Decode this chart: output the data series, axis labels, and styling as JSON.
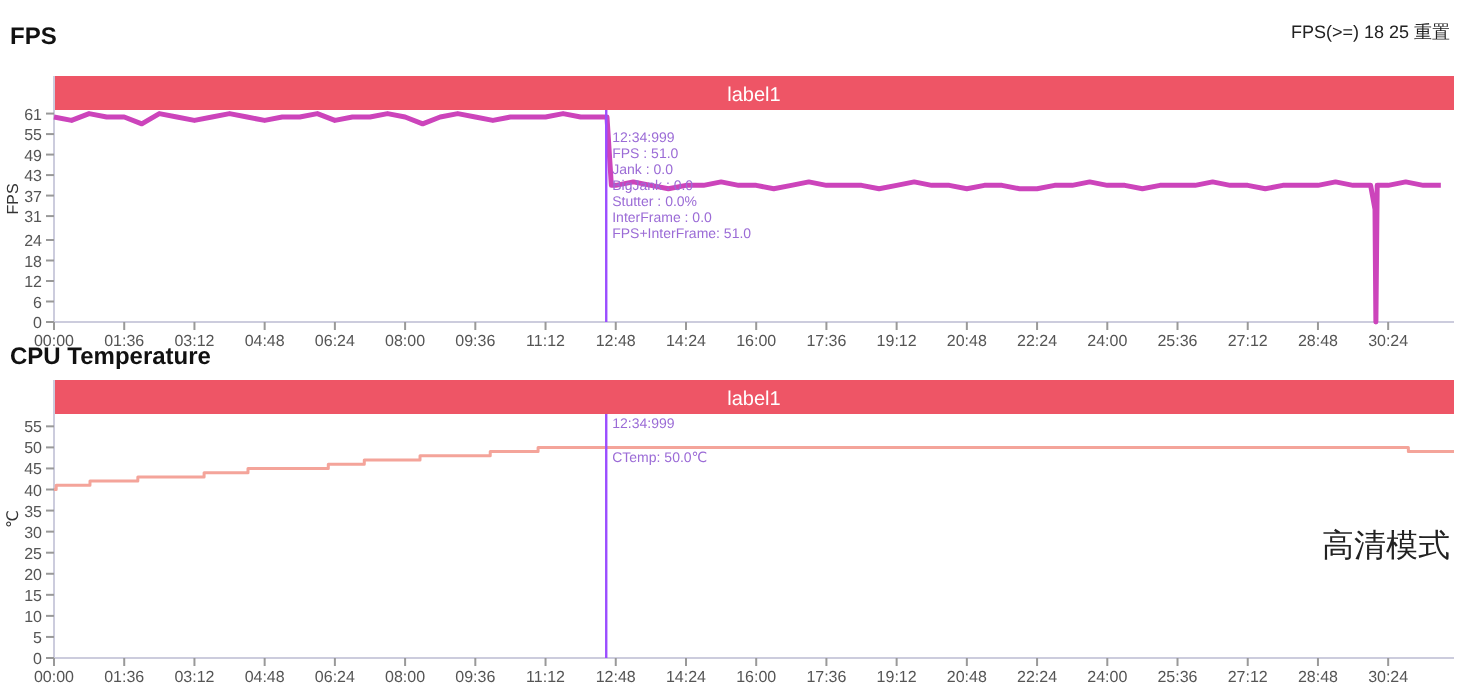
{
  "chart_data": [
    {
      "type": "line",
      "title": "FPS",
      "ylabel": "FPS",
      "xlim": [
        0,
        31.9
      ],
      "ylim": [
        0,
        72
      ],
      "xticks": [
        {
          "value": 0,
          "label": "00:00"
        },
        {
          "value": 1.6,
          "label": "01:36"
        },
        {
          "value": 3.2,
          "label": "03:12"
        },
        {
          "value": 4.8,
          "label": "04:48"
        },
        {
          "value": 6.4,
          "label": "06:24"
        },
        {
          "value": 8,
          "label": "08:00"
        },
        {
          "value": 9.6,
          "label": "09:36"
        },
        {
          "value": 11.2,
          "label": "11:12"
        },
        {
          "value": 12.8,
          "label": "12:48"
        },
        {
          "value": 14.4,
          "label": "14:24"
        },
        {
          "value": 16,
          "label": "16:00"
        },
        {
          "value": 17.6,
          "label": "17:36"
        },
        {
          "value": 19.2,
          "label": "19:12"
        },
        {
          "value": 20.8,
          "label": "20:48"
        },
        {
          "value": 22.4,
          "label": "22:24"
        },
        {
          "value": 24,
          "label": "24:00"
        },
        {
          "value": 25.6,
          "label": "25:36"
        },
        {
          "value": 27.2,
          "label": "27:12"
        },
        {
          "value": 28.8,
          "label": "28:48"
        },
        {
          "value": 30.4,
          "label": "30:24"
        }
      ],
      "yticks": [
        0,
        6,
        12,
        18,
        24,
        31,
        37,
        43,
        49,
        55,
        61
      ],
      "series": [
        {
          "color": "#cc44bb",
          "x": [
            0,
            0.4,
            0.8,
            1.2,
            1.6,
            2,
            2.4,
            2.8,
            3.2,
            3.6,
            4,
            4.4,
            4.8,
            5.2,
            5.6,
            6,
            6.4,
            6.8,
            7.2,
            7.6,
            8,
            8.4,
            8.8,
            9.2,
            9.6,
            10,
            10.4,
            10.8,
            11.2,
            11.6,
            12,
            12.4,
            12.6,
            12.7,
            12.8,
            13.2,
            13.6,
            14,
            14.4,
            14.8,
            15.2,
            15.6,
            16,
            16.4,
            16.8,
            17.2,
            17.6,
            18,
            18.4,
            18.8,
            19.2,
            19.6,
            20,
            20.4,
            20.8,
            21.2,
            21.6,
            22,
            22.4,
            22.8,
            23.2,
            23.6,
            24,
            24.4,
            24.8,
            25.2,
            25.6,
            26,
            26.4,
            26.8,
            27.2,
            27.6,
            28,
            28.4,
            28.8,
            29.2,
            29.6,
            30,
            30.1,
            30.12,
            30.15,
            30.4,
            30.8,
            31.2,
            31.6
          ],
          "values": [
            60,
            59,
            61,
            60,
            60,
            58,
            61,
            60,
            59,
            60,
            61,
            60,
            59,
            60,
            60,
            61,
            59,
            60,
            60,
            61,
            60,
            58,
            60,
            61,
            60,
            59,
            60,
            60,
            60,
            61,
            60,
            60,
            60,
            40,
            40,
            41,
            40,
            39,
            40,
            40,
            41,
            40,
            40,
            39,
            40,
            41,
            40,
            40,
            40,
            39,
            40,
            41,
            40,
            40,
            39,
            40,
            40,
            39,
            39,
            40,
            40,
            41,
            40,
            40,
            39,
            40,
            40,
            40,
            41,
            40,
            40,
            39,
            40,
            40,
            40,
            41,
            40,
            40,
            33,
            0,
            40,
            40,
            41,
            40,
            40
          ]
        }
      ],
      "bands": [
        {
          "axis": "x",
          "from": 0,
          "to": 31.9,
          "label": "label1",
          "color": "#ee5566"
        }
      ],
      "ref_lines": [
        {
          "axis": "x",
          "value": 12.583,
          "color": "#9b4dff"
        }
      ],
      "subtitle": "FPS(>=)   18   25   重置",
      "annotations": [
        "12:34:999",
        "FPS            : 51.0",
        "Jank           : 0.0",
        "BigJank        : 0.0",
        "Stutter        : 0.0%",
        "InterFrame     : 0.0",
        "FPS+InterFrame: 51.0"
      ]
    },
    {
      "type": "step",
      "title": "CPU Temperature",
      "ylabel": "℃",
      "xlim": [
        0,
        31.9
      ],
      "ylim": [
        0,
        66
      ],
      "xticks": [
        {
          "value": 0,
          "label": "00:00"
        },
        {
          "value": 1.6,
          "label": "01:36"
        },
        {
          "value": 3.2,
          "label": "03:12"
        },
        {
          "value": 4.8,
          "label": "04:48"
        },
        {
          "value": 6.4,
          "label": "06:24"
        },
        {
          "value": 8,
          "label": "08:00"
        },
        {
          "value": 9.6,
          "label": "09:36"
        },
        {
          "value": 11.2,
          "label": "11:12"
        },
        {
          "value": 12.8,
          "label": "12:48"
        },
        {
          "value": 14.4,
          "label": "14:24"
        },
        {
          "value": 16,
          "label": "16:00"
        },
        {
          "value": 17.6,
          "label": "17:36"
        },
        {
          "value": 19.2,
          "label": "19:12"
        },
        {
          "value": 20.8,
          "label": "20:48"
        },
        {
          "value": 22.4,
          "label": "22:24"
        },
        {
          "value": 24,
          "label": "24:00"
        },
        {
          "value": 25.6,
          "label": "25:36"
        },
        {
          "value": 27.2,
          "label": "27:12"
        },
        {
          "value": 28.8,
          "label": "28:48"
        },
        {
          "value": 30.4,
          "label": "30:24"
        }
      ],
      "yticks": [
        0,
        5,
        10,
        15,
        20,
        25,
        30,
        35,
        40,
        45,
        50,
        55
      ],
      "series": [
        {
          "color": "#f4a49a",
          "x": [
            0,
            0.05,
            0.82,
            1.91,
            3.42,
            4.42,
            6.25,
            7.07,
            8.34,
            9.94,
            11.03,
            30.86,
            31.9
          ],
          "values": [
            40,
            41,
            42,
            43,
            44,
            45,
            46,
            47,
            48,
            49,
            50,
            49,
            49
          ]
        }
      ],
      "bands": [
        {
          "axis": "x",
          "from": 0,
          "to": 31.9,
          "label": "label1",
          "color": "#ee5566"
        }
      ],
      "ref_lines": [
        {
          "axis": "x",
          "value": 12.583,
          "color": "#9b4dff"
        }
      ],
      "subtitle": "高清模式",
      "annotations": [
        "12:34:999",
        "CTemp: 50.0℃"
      ]
    }
  ]
}
